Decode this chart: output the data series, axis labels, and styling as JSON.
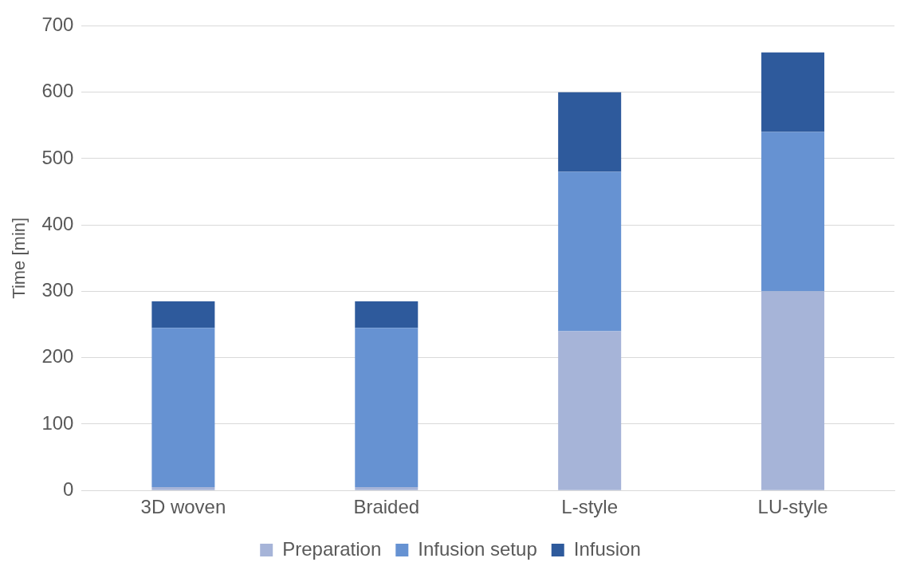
{
  "chart_data": {
    "type": "bar",
    "stacked": true,
    "ylabel": "Time [min]",
    "categories": [
      "3D woven",
      "Braided",
      "L-style",
      "LU-style"
    ],
    "series": [
      {
        "name": "Preparation",
        "color": "#a6b4d8",
        "values": [
          5,
          5,
          240,
          300
        ]
      },
      {
        "name": "Infusion setup",
        "color": "#6692d2",
        "values": [
          240,
          240,
          240,
          240
        ]
      },
      {
        "name": "Infusion",
        "color": "#2e5a9c",
        "values": [
          40,
          40,
          120,
          120
        ]
      }
    ],
    "ylim": [
      0,
      700
    ],
    "yticks": [
      0,
      100,
      200,
      300,
      400,
      500,
      600,
      700
    ],
    "grid": "y",
    "legend": "bottom"
  }
}
